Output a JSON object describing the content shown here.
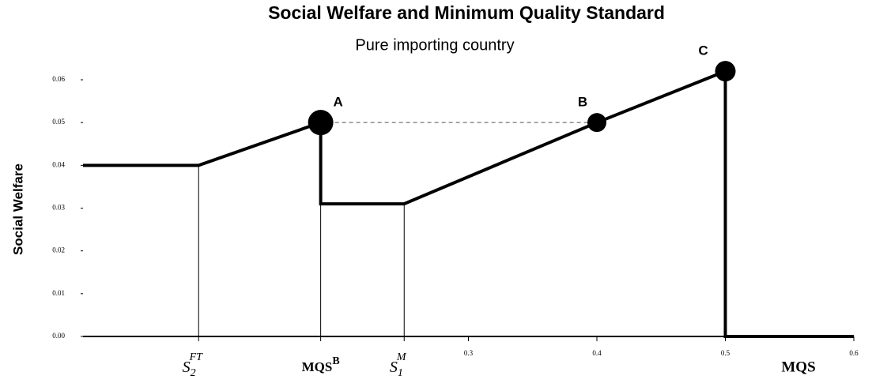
{
  "chart_data": {
    "type": "line",
    "title": "Social Welfare and Minimum Quality Standard",
    "subtitle": "Pure importing country",
    "y_label": "Social Welfare",
    "x_label": "MQS",
    "xlim": [
      0,
      0.6
    ],
    "ylim": [
      0,
      0.06
    ],
    "xticks": [
      0.3,
      0.4,
      0.5,
      0.6
    ],
    "yticks": [
      {
        "value": 0,
        "label": "0.00"
      },
      {
        "value": 0.01,
        "label": "0.01"
      },
      {
        "value": 0.02,
        "label": "0.02"
      },
      {
        "value": 0.03,
        "label": "0.03"
      },
      {
        "value": 0.04,
        "label": "0.04"
      },
      {
        "value": 0.05,
        "label": "0.05"
      },
      {
        "value": 0.06,
        "label": "0.06"
      }
    ],
    "x_markers": [
      {
        "x": 0.09,
        "label": "S",
        "sub": "2",
        "sup": "FT"
      },
      {
        "x": 0.185,
        "label": "MQS",
        "sup": "B"
      },
      {
        "x": 0.25,
        "label": "S",
        "sub": "1",
        "sup": "M"
      }
    ],
    "series": [
      {
        "color": "#000000",
        "x": [
          0,
          0.09,
          0.185,
          0.185,
          0.25,
          0.4,
          0.5,
          0.5,
          0.6
        ],
        "values": [
          0.04,
          0.04,
          0.05,
          0.031,
          0.031,
          0.05,
          0.062,
          0,
          0
        ]
      }
    ],
    "points": [
      {
        "label": "A",
        "x": 0.185,
        "y": 0.05
      },
      {
        "label": "B",
        "x": 0.4,
        "y": 0.05
      },
      {
        "label": "C",
        "x": 0.5,
        "y": 0.062
      }
    ]
  }
}
